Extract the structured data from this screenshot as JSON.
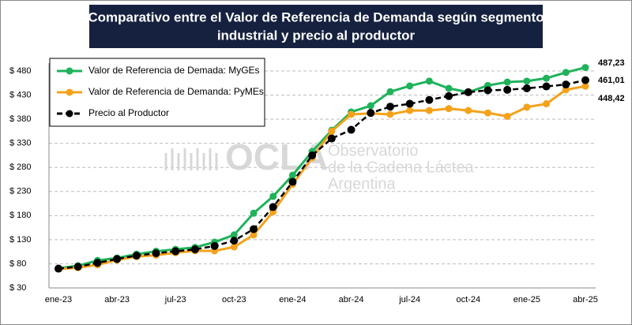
{
  "chart_data": {
    "type": "line",
    "title": [
      "Comparativo entre el Valor de Referencia de Demanda según segmento",
      "industrial y precio al productor"
    ],
    "categories": [
      "ene-23",
      null,
      null,
      "abr-23",
      null,
      null,
      "jul-23",
      null,
      null,
      "oct-23",
      null,
      null,
      "ene-24",
      null,
      null,
      "abr-24",
      null,
      null,
      "jul-24",
      null,
      null,
      "oct-24",
      null,
      null,
      "ene-25",
      null,
      null,
      "abr-25"
    ],
    "series": [
      {
        "name": "Valor de Referencia de Demada: MyGEs",
        "color": "#1fb25a",
        "dashed": false,
        "values": [
          71,
          76,
          87,
          92,
          100,
          106,
          110,
          114,
          125,
          140,
          185,
          220,
          264,
          313,
          357,
          395,
          408,
          437,
          449,
          459,
          444,
          436,
          450,
          457,
          459,
          465,
          477,
          487.23
        ],
        "value_labels": [
          null,
          null,
          null,
          null,
          null,
          null,
          null,
          null,
          null,
          null,
          null,
          null,
          null,
          null,
          null,
          null,
          null,
          null,
          null,
          null,
          null,
          null,
          null,
          null,
          null,
          null,
          null,
          "487,23"
        ]
      },
      {
        "name": "Valor de Referencia de Demanda: PyMEs",
        "color": "#f5a21b",
        "dashed": false,
        "values": [
          69,
          72,
          78,
          88,
          95,
          98,
          103,
          107,
          107,
          115,
          140,
          188,
          245,
          300,
          355,
          390,
          392,
          390,
          398,
          398,
          402,
          398,
          393,
          386,
          405,
          412,
          441,
          448.42
        ],
        "value_labels": [
          null,
          null,
          null,
          null,
          null,
          null,
          null,
          null,
          null,
          null,
          null,
          null,
          null,
          null,
          null,
          null,
          null,
          null,
          null,
          null,
          null,
          null,
          null,
          null,
          null,
          null,
          null,
          "448,42"
        ]
      },
      {
        "name": "Precio al Productor",
        "color": "#000000",
        "dashed": true,
        "values": [
          70,
          74,
          82,
          90,
          97,
          102,
          106,
          110,
          117,
          128,
          152,
          198,
          250,
          305,
          340,
          358,
          393,
          406,
          412,
          420,
          428,
          436,
          440,
          441,
          444,
          448,
          452,
          461.01
        ],
        "value_labels": [
          null,
          null,
          null,
          null,
          null,
          null,
          null,
          null,
          null,
          null,
          null,
          null,
          null,
          null,
          null,
          null,
          null,
          null,
          null,
          null,
          null,
          null,
          null,
          null,
          null,
          null,
          null,
          "461,01"
        ]
      }
    ],
    "ylim": [
      30,
      480
    ],
    "yticks": [
      {
        "value": 30,
        "label": "$ 30"
      },
      {
        "value": 80,
        "label": "$ 80"
      },
      {
        "value": 130,
        "label": "$ 130"
      },
      {
        "value": 180,
        "label": "$ 180"
      },
      {
        "value": 230,
        "label": "$ 230"
      },
      {
        "value": 280,
        "label": "$ 280"
      },
      {
        "value": 330,
        "label": "$ 330"
      },
      {
        "value": 380,
        "label": "$ 380"
      },
      {
        "value": 430,
        "label": "$ 430"
      },
      {
        "value": 480,
        "label": "$ 480"
      }
    ],
    "grid": true,
    "legend": "upper left",
    "watermark": {
      "logo": "OCLA",
      "lines": [
        "Observatorio",
        "de la Cadena Láctea",
        "Argentina"
      ]
    }
  }
}
